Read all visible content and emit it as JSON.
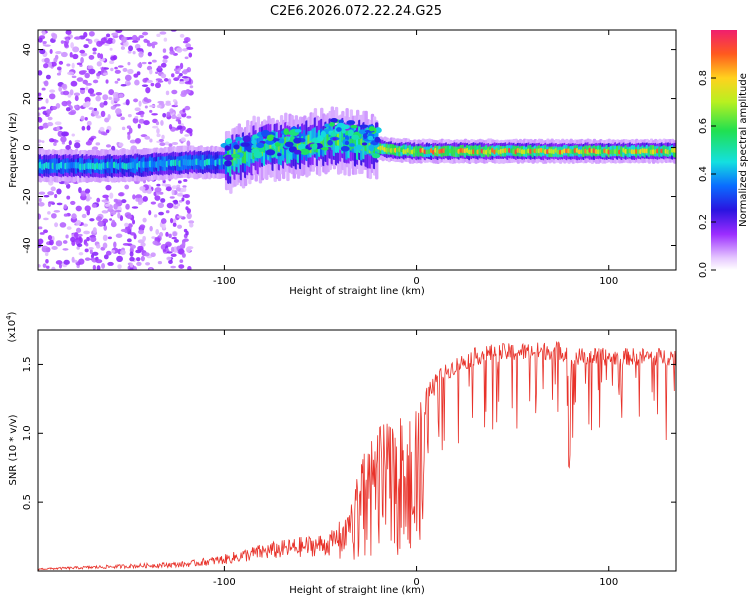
{
  "title": "C2E6.2026.072.22.24.G25",
  "chart_data": [
    {
      "type": "heatmap",
      "xlabel": "Height of straight line (km)",
      "ylabel": "Frequency (Hz)",
      "xlim": [
        -197,
        135
      ],
      "ylim": [
        -50,
        48
      ],
      "xticks": [
        -100,
        0,
        100
      ],
      "yticks": [
        -40,
        -20,
        0,
        20,
        40
      ],
      "colorbar": {
        "label": "Normalized spectral amplitude",
        "range": [
          0,
          1
        ],
        "ticks": [
          "0.0",
          "0.2",
          "0.4",
          "0.6",
          "0.8"
        ]
      },
      "ridge_center_hz": [
        {
          "x": -197,
          "y": -7.5
        },
        {
          "x": -150,
          "y": -7.5
        },
        {
          "x": -120,
          "y": -6
        },
        {
          "x": -100,
          "y": -6
        },
        {
          "x": -85,
          "y": -1
        },
        {
          "x": -70,
          "y": 0
        },
        {
          "x": -55,
          "y": 2
        },
        {
          "x": -40,
          "y": 3
        },
        {
          "x": -25,
          "y": 1
        },
        {
          "x": -15,
          "y": -1
        },
        {
          "x": 0,
          "y": -1.5
        },
        {
          "x": 50,
          "y": -1.5
        },
        {
          "x": 135,
          "y": -1.5
        }
      ]
    },
    {
      "type": "line",
      "xlabel": "Height of straight line (km)",
      "ylabel": "SNR (10 * v/v)",
      "y_multiplier": "(x10",
      "y_multiplier_exp": "4",
      "xlim": [
        -197,
        135
      ],
      "ylim": [
        0,
        1.75
      ],
      "xticks": [
        -100,
        0,
        100
      ],
      "yticks": [
        0.5,
        1.0,
        1.5
      ],
      "ytick_labels": [
        "0.5",
        "1.0",
        "1.5"
      ],
      "series": [
        {
          "color": "#e8322a",
          "envelope": [
            {
              "x": -197,
              "y": 0.02
            },
            {
              "x": -150,
              "y": 0.05
            },
            {
              "x": -120,
              "y": 0.07
            },
            {
              "x": -100,
              "y": 0.12
            },
            {
              "x": -80,
              "y": 0.2
            },
            {
              "x": -60,
              "y": 0.25
            },
            {
              "x": -45,
              "y": 0.28
            },
            {
              "x": -35,
              "y": 0.45
            },
            {
              "x": -28,
              "y": 0.9
            },
            {
              "x": -20,
              "y": 1.05
            },
            {
              "x": -10,
              "y": 1.1
            },
            {
              "x": 0,
              "y": 1.2
            },
            {
              "x": 10,
              "y": 1.45
            },
            {
              "x": 20,
              "y": 1.55
            },
            {
              "x": 30,
              "y": 1.62
            },
            {
              "x": 40,
              "y": 1.65
            },
            {
              "x": 60,
              "y": 1.66
            },
            {
              "x": 74,
              "y": 1.67
            },
            {
              "x": 80,
              "y": 1.62
            },
            {
              "x": 90,
              "y": 1.62
            },
            {
              "x": 110,
              "y": 1.62
            },
            {
              "x": 135,
              "y": 1.62
            }
          ]
        }
      ]
    }
  ]
}
